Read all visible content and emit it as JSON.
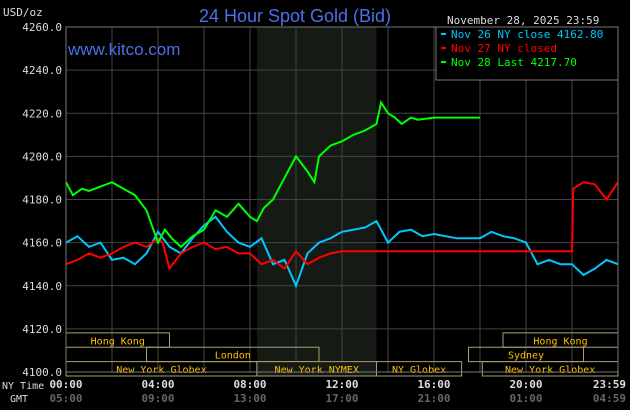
{
  "chart_data": {
    "type": "line",
    "title": "24 Hour Spot Gold (Bid)",
    "watermark": "www.kitco.com",
    "timestamp": "November 28, 2025 23:59",
    "ylabel": "USD/oz",
    "ylim": [
      4100,
      4260
    ],
    "yticks": [
      "4260.0",
      "4240.0",
      "4220.0",
      "4200.0",
      "4180.0",
      "4160.0",
      "4140.0",
      "4120.0",
      "4100.0"
    ],
    "xlim_hours": [
      0,
      24
    ],
    "x_row_label_ny": "NY Time",
    "x_row_label_gmt": "GMT",
    "xticks_ny": [
      "00:00",
      "04:00",
      "08:00",
      "12:00",
      "16:00",
      "20:00",
      "23:59"
    ],
    "xticks_gmt": [
      "05:00",
      "09:00",
      "13:00",
      "17:00",
      "21:00",
      "01:00",
      "04:59"
    ],
    "grid": true,
    "legend_placement": "top-right",
    "highlight_hours": [
      8.3,
      13.5
    ],
    "series": [
      {
        "name": "Nov 26 NY close 4162.80",
        "color": "#00c8ff",
        "x": [
          0,
          0.5,
          1,
          1.5,
          2,
          2.5,
          3,
          3.5,
          4,
          4.5,
          5,
          5.5,
          6,
          6.5,
          7,
          7.5,
          8,
          8.5,
          9,
          9.5,
          10,
          10.5,
          11,
          11.5,
          12,
          12.5,
          13,
          13.5,
          14,
          14.5,
          15,
          15.5,
          16,
          17,
          18,
          18.5,
          19,
          19.5,
          20,
          20.5,
          21,
          21.5,
          22,
          22.5,
          23,
          23.5,
          24
        ],
        "y": [
          4160,
          4163,
          4158,
          4160,
          4152,
          4153,
          4150,
          4155,
          4165,
          4158,
          4155,
          4162,
          4168,
          4172,
          4165,
          4160,
          4158,
          4162,
          4150,
          4152,
          4140,
          4155,
          4160,
          4162,
          4165,
          4166,
          4167,
          4170,
          4160,
          4165,
          4166,
          4163,
          4164,
          4162,
          4162,
          4165,
          4163,
          4162,
          4160,
          4150,
          4152,
          4150,
          4150,
          4145,
          4148,
          4152,
          4150
        ]
      },
      {
        "name": "Nov 27 NY closed",
        "color": "#ff0000",
        "x": [
          0,
          0.5,
          1,
          1.5,
          2,
          2.5,
          3,
          3.5,
          4,
          4.2,
          4.5,
          5,
          5.5,
          6,
          6.5,
          7,
          7.5,
          8,
          8.5,
          9,
          9.5,
          10,
          10.5,
          11,
          11.5,
          12,
          13,
          14,
          16,
          18,
          20,
          22,
          22.05,
          22.5,
          23,
          23.5,
          24
        ],
        "y": [
          4150,
          4152,
          4155,
          4153,
          4155,
          4158,
          4160,
          4158,
          4162,
          4160,
          4148,
          4155,
          4158,
          4160,
          4157,
          4158,
          4155,
          4155,
          4150,
          4152,
          4148,
          4156,
          4150,
          4153,
          4155,
          4156,
          4156,
          4156,
          4156,
          4156,
          4156,
          4156,
          4185,
          4188,
          4187,
          4180,
          4188
        ]
      },
      {
        "name": "Nov 28 Last 4217.70",
        "color": "#00ff00",
        "x": [
          0,
          0.3,
          0.7,
          1,
          1.5,
          2,
          2.5,
          3,
          3.5,
          4,
          4.3,
          4.6,
          5,
          5.5,
          6,
          6.5,
          7,
          7.5,
          8,
          8.3,
          8.6,
          9,
          9.5,
          10,
          10.5,
          10.8,
          11,
          11.5,
          12,
          12.5,
          13,
          13.5,
          13.7,
          14,
          14.3,
          14.6,
          15,
          15.3,
          16,
          17,
          18
        ],
        "y": [
          4188,
          4182,
          4185,
          4184,
          4186,
          4188,
          4185,
          4182,
          4175,
          4160,
          4166,
          4162,
          4158,
          4163,
          4166,
          4175,
          4172,
          4178,
          4172,
          4170,
          4176,
          4180,
          4190,
          4200,
          4193,
          4188,
          4200,
          4205,
          4207,
          4210,
          4212,
          4215,
          4225,
          4220,
          4218,
          4215,
          4218,
          4217,
          4218,
          4218,
          4218
        ]
      }
    ],
    "sessions": [
      {
        "label": "Hong Kong",
        "row": 0,
        "start": 0,
        "end": 4.5
      },
      {
        "label": "Hong Kong",
        "row": 0,
        "start": 19.0,
        "end": 24
      },
      {
        "label": "London",
        "row": 1,
        "start": 3.5,
        "end": 11
      },
      {
        "label": "Sydney",
        "row": 1,
        "start": 17.5,
        "end": 22.5
      },
      {
        "label": "New York Globex",
        "row": 2,
        "start": 0,
        "end": 8.3
      },
      {
        "label": "New York NYMEX",
        "row": 2,
        "start": 8.3,
        "end": 13.5
      },
      {
        "label": "NY Globex",
        "row": 2,
        "start": 13.5,
        "end": 17.2
      },
      {
        "label": "New York Globex",
        "row": 2,
        "start": 18.1,
        "end": 24
      }
    ]
  }
}
